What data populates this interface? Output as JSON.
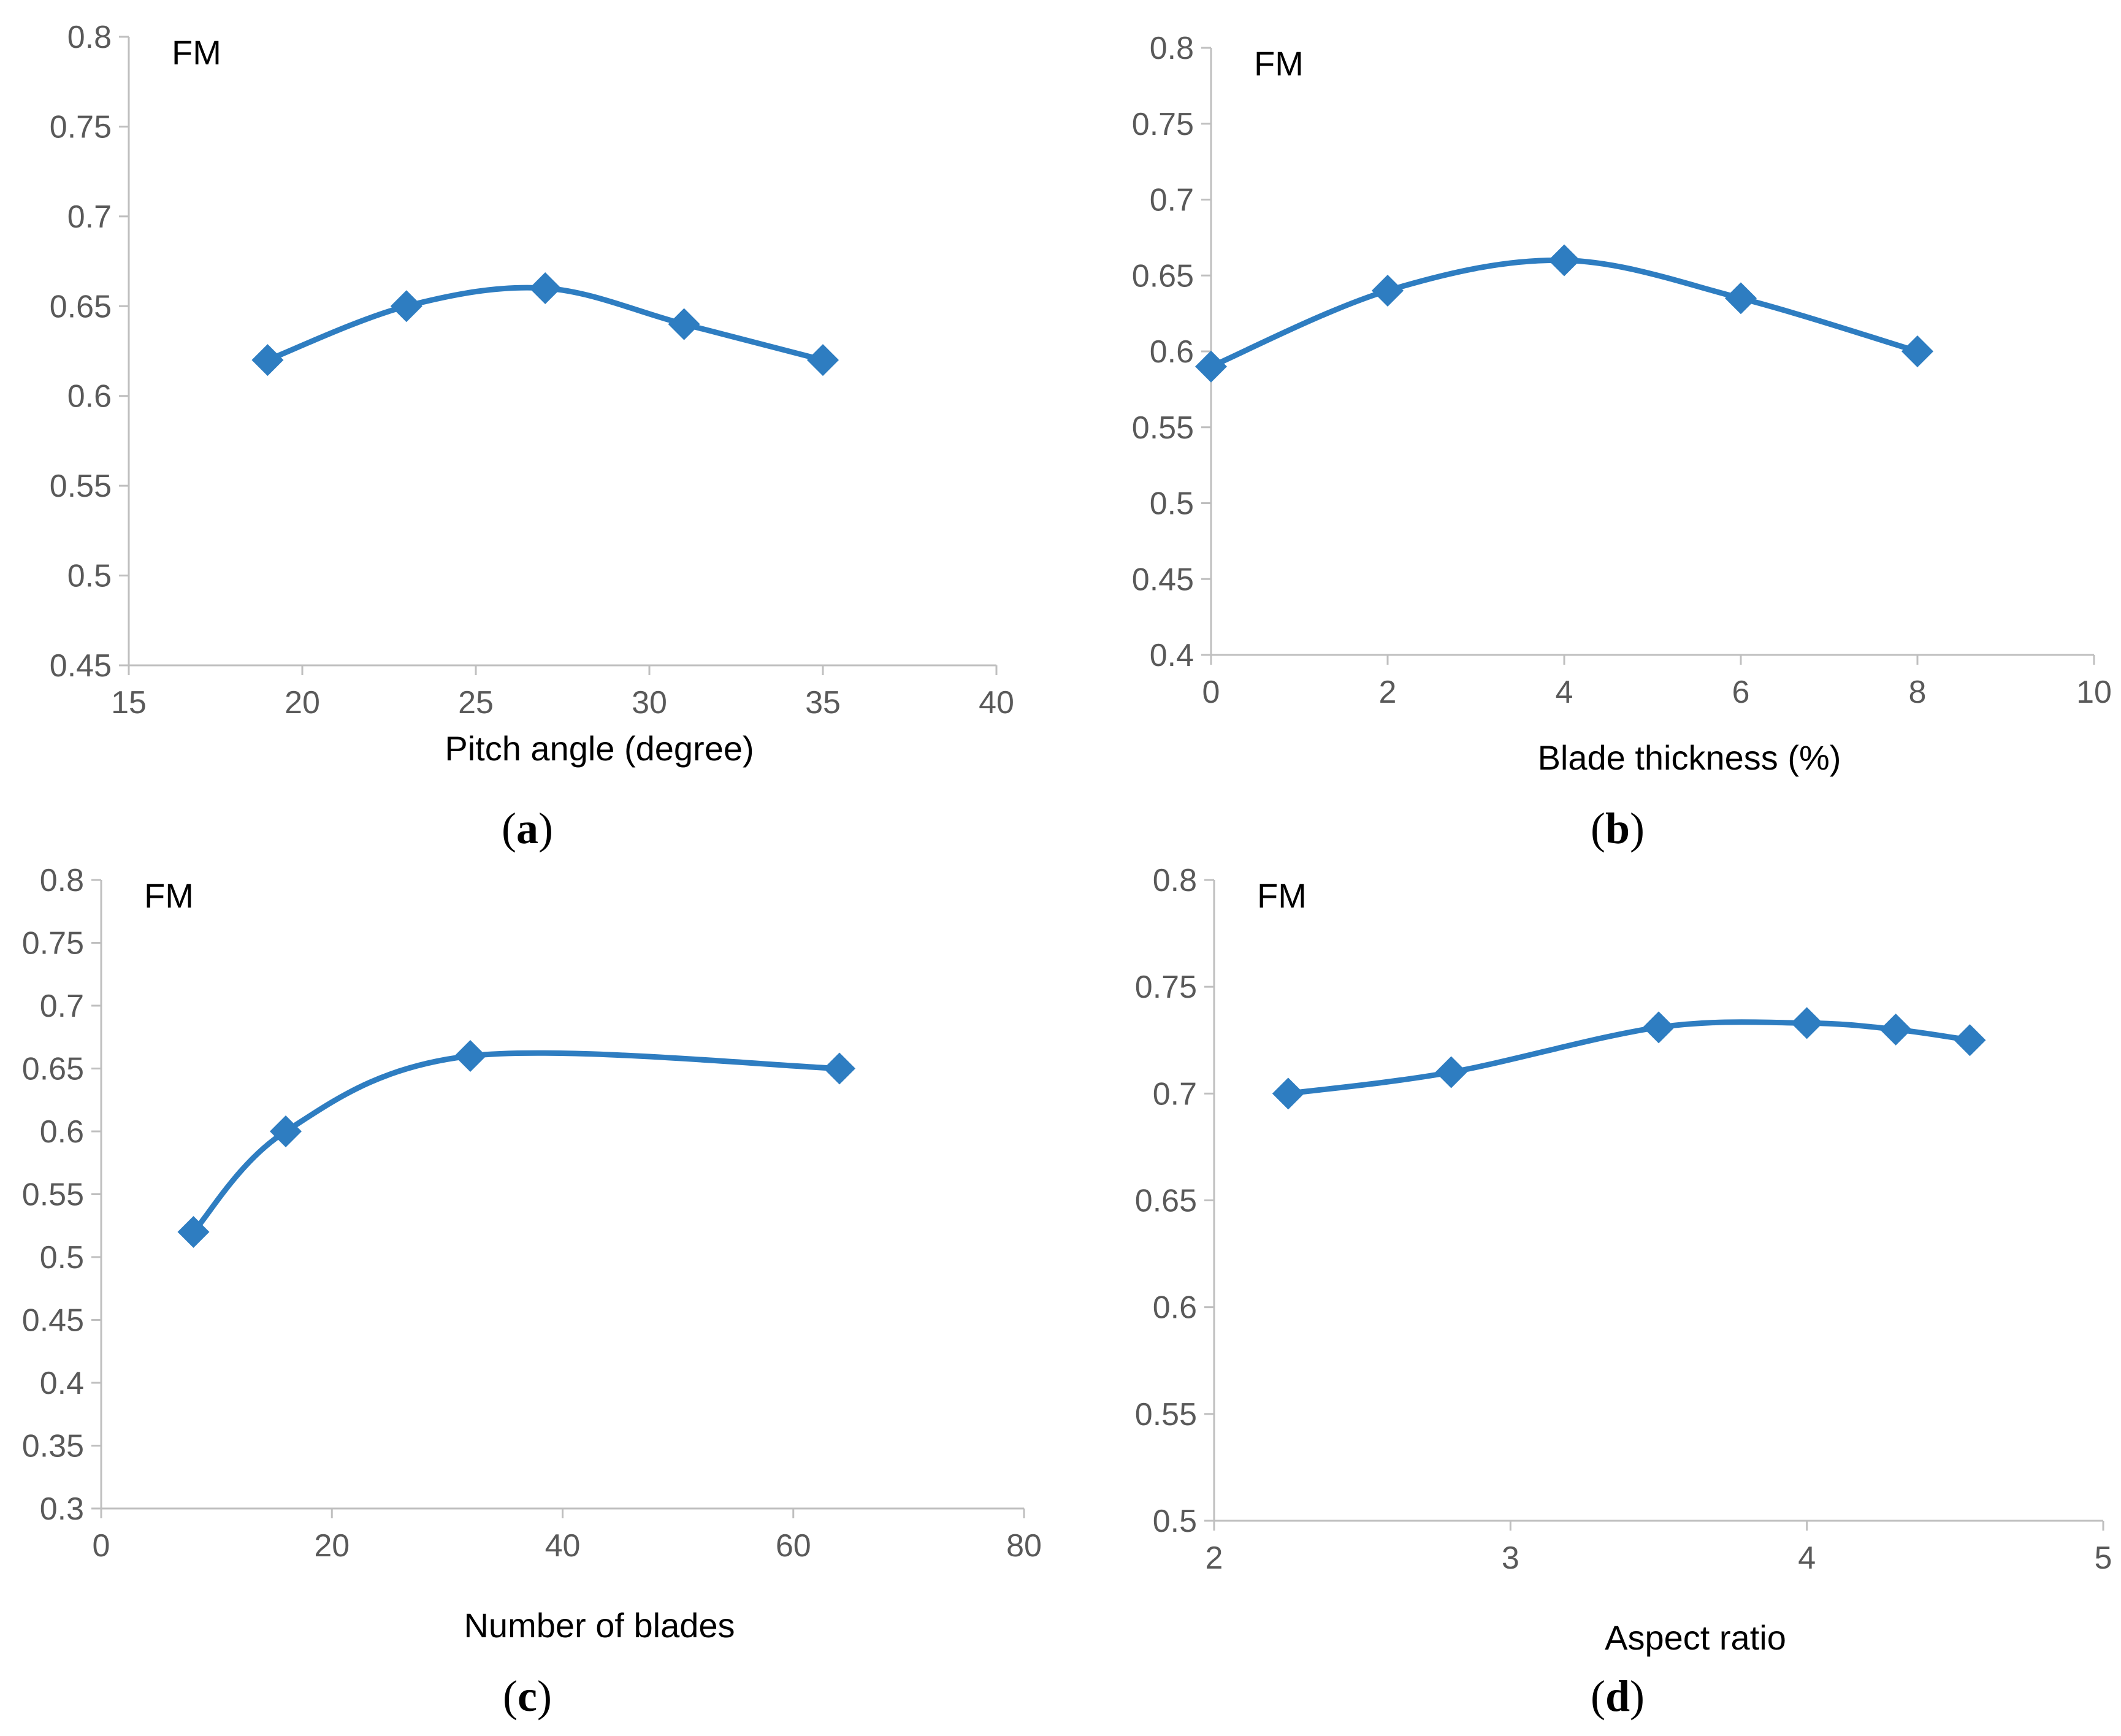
{
  "colors": {
    "series": "#2e7dc1",
    "axis": "#bfbfbf",
    "tick_text": "#595959"
  },
  "chart_data": [
    {
      "panel": "a",
      "type": "line",
      "ylabel": "FM",
      "xlabel": "Pitch angle (degree)",
      "xlim": [
        15,
        40
      ],
      "ylim": [
        0.45,
        0.8
      ],
      "xticks": [
        "15",
        "20",
        "25",
        "30",
        "35",
        "40"
      ],
      "yticks": [
        "0.45",
        "0.5",
        "0.55",
        "0.6",
        "0.65",
        "0.7",
        "0.75",
        "0.8"
      ],
      "x": [
        19,
        23,
        27,
        31,
        35
      ],
      "y": [
        0.62,
        0.65,
        0.66,
        0.64,
        0.62
      ],
      "smooth": true,
      "marker": "diamond"
    },
    {
      "panel": "b",
      "type": "line",
      "ylabel": "FM",
      "xlabel": "Blade thickness (%)",
      "xlim": [
        0,
        10
      ],
      "ylim": [
        0.4,
        0.8
      ],
      "xticks": [
        "0",
        "2",
        "4",
        "6",
        "8",
        "10"
      ],
      "yticks": [
        "0.4",
        "0.45",
        "0.5",
        "0.55",
        "0.6",
        "0.65",
        "0.7",
        "0.75",
        "0.8"
      ],
      "x": [
        0,
        2,
        4,
        6,
        8
      ],
      "y": [
        0.59,
        0.64,
        0.66,
        0.635,
        0.6
      ],
      "smooth": true,
      "marker": "diamond"
    },
    {
      "panel": "c",
      "type": "line",
      "ylabel": "FM",
      "xlabel": "Number of blades",
      "xlim": [
        0,
        80
      ],
      "ylim": [
        0.3,
        0.8
      ],
      "xticks": [
        "0",
        "20",
        "40",
        "60",
        "80"
      ],
      "yticks": [
        "0.3",
        "0.35",
        "0.4",
        "0.45",
        "0.5",
        "0.55",
        "0.6",
        "0.65",
        "0.7",
        "0.75",
        "0.8"
      ],
      "x": [
        8,
        16,
        32,
        64
      ],
      "y": [
        0.52,
        0.6,
        0.66,
        0.65
      ],
      "smooth": true,
      "marker": "diamond"
    },
    {
      "panel": "d",
      "type": "line",
      "ylabel": "FM",
      "xlabel": "Aspect ratio",
      "xlim": [
        2,
        5
      ],
      "ylim": [
        0.5,
        0.8
      ],
      "xticks": [
        "2",
        "3",
        "4",
        "5"
      ],
      "yticks": [
        "0.5",
        "0.55",
        "0.6",
        "0.65",
        "0.7",
        "0.75",
        "0.8"
      ],
      "x": [
        2.25,
        2.8,
        3.5,
        4.0,
        4.3,
        4.55
      ],
      "y": [
        0.7,
        0.71,
        0.731,
        0.733,
        0.73,
        0.725
      ],
      "smooth": true,
      "marker": "diamond"
    }
  ]
}
